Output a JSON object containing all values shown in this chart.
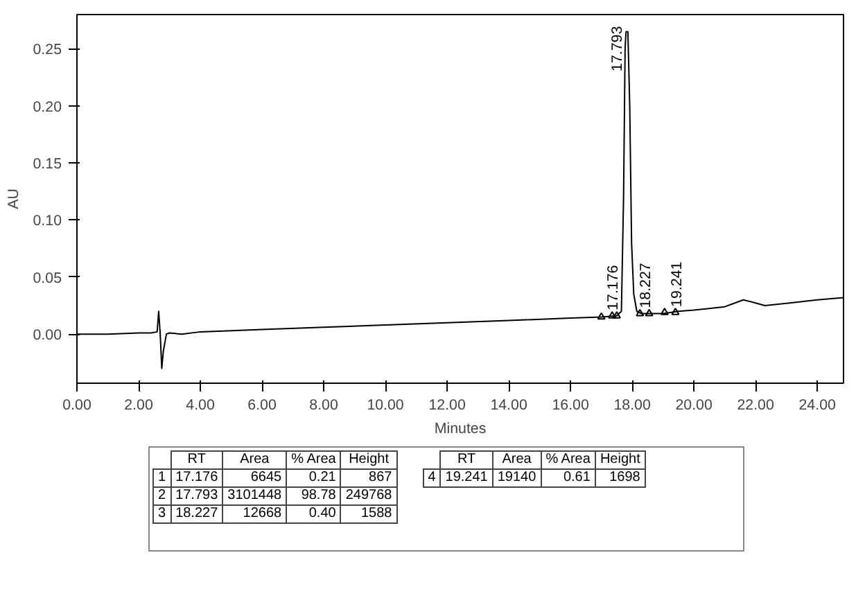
{
  "chart_data": {
    "type": "line",
    "xlabel": "Minutes",
    "ylabel": "AU",
    "xlim": [
      0,
      24.85
    ],
    "ylim": [
      -0.043,
      0.28
    ],
    "xticks": [
      {
        "value": 0,
        "label": "0.00"
      },
      {
        "value": 2,
        "label": "2.00"
      },
      {
        "value": 4,
        "label": "4.00"
      },
      {
        "value": 6,
        "label": "6.00"
      },
      {
        "value": 8,
        "label": "8.00"
      },
      {
        "value": 10,
        "label": "10.00"
      },
      {
        "value": 12,
        "label": "12.00"
      },
      {
        "value": 14,
        "label": "14.00"
      },
      {
        "value": 16,
        "label": "16.00"
      },
      {
        "value": 18,
        "label": "18.00"
      },
      {
        "value": 20,
        "label": "20.00"
      },
      {
        "value": 22,
        "label": "22.00"
      },
      {
        "value": 24,
        "label": "24.00"
      }
    ],
    "yticks": [
      {
        "value": 0,
        "label": "0.00"
      },
      {
        "value": 0.05,
        "label": "0.05"
      },
      {
        "value": 0.1,
        "label": "0.10"
      },
      {
        "value": 0.15,
        "label": "0.15"
      },
      {
        "value": 0.2,
        "label": "0.20"
      },
      {
        "value": 0.25,
        "label": "0.25"
      }
    ],
    "grid": false,
    "series": [
      {
        "color": "#000000",
        "x": [
          0,
          1.0,
          2.0,
          2.4,
          2.6,
          2.65,
          2.7,
          2.75,
          2.8,
          2.9,
          3.0,
          3.4,
          4.0,
          6.0,
          8.0,
          10.0,
          12.0,
          14.0,
          16.0,
          17.0,
          17.5,
          17.65,
          17.72,
          17.77,
          17.8,
          17.86,
          17.92,
          17.98,
          18.05,
          18.15,
          18.3,
          19.0,
          19.5,
          20.0,
          21.0,
          21.3,
          21.6,
          21.9,
          22.3,
          23.0,
          24.0,
          24.85
        ],
        "values": [
          0,
          0.0,
          0.001,
          0.001,
          0.002,
          0.02,
          0.0,
          -0.03,
          -0.015,
          0.0,
          0.001,
          0.0,
          0.002,
          0.004,
          0.006,
          0.008,
          0.01,
          0.012,
          0.014,
          0.015,
          0.016,
          0.02,
          0.12,
          0.25,
          0.265,
          0.265,
          0.2,
          0.08,
          0.035,
          0.02,
          0.018,
          0.018,
          0.02,
          0.021,
          0.024,
          0.027,
          0.03,
          0.028,
          0.025,
          0.027,
          0.03,
          0.032
        ]
      },
      {
        "type": "scatter",
        "marker": "triangle",
        "color": "#000000",
        "x": [
          17.0,
          17.35,
          17.5,
          18.25,
          18.55,
          19.05,
          19.4
        ],
        "values": [
          0.015,
          0.016,
          0.016,
          0.018,
          0.018,
          0.019,
          0.019
        ]
      }
    ],
    "annotations": [
      {
        "text": "17.176",
        "x": 17.176,
        "y": 0.016
      },
      {
        "text": "17.793",
        "x": 17.793,
        "y": 0.265
      },
      {
        "text": "18.227",
        "x": 18.227,
        "y": 0.018
      },
      {
        "text": "19.241",
        "x": 19.241,
        "y": 0.019
      },
      "RT",
      "Area",
      "% Area",
      "Height",
      "1",
      "17.176",
      "6645",
      "0.21",
      "867",
      "2",
      "17.793",
      "3101448",
      "98.78",
      "249768",
      "3",
      "18.227",
      "12668",
      "0.40",
      "1588",
      "RT",
      "Area",
      "% Area",
      "Height",
      "4",
      "19.241",
      "19140",
      "0.61",
      "1698"
    ]
  }
}
